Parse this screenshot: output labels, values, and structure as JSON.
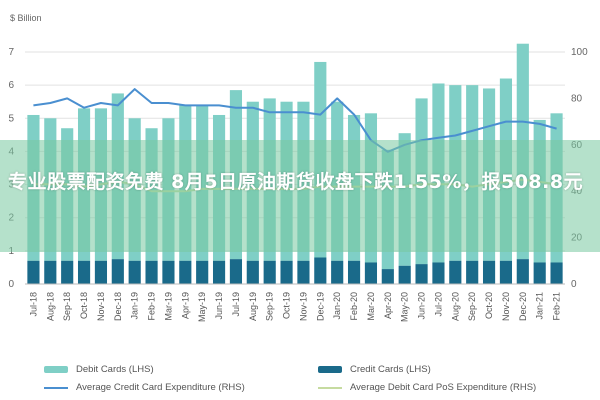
{
  "chart_data": {
    "type": "bar",
    "ylabel_left": "$ Billion",
    "ylim_left": [
      0,
      7
    ],
    "yticks_left": [
      "0",
      "1",
      "2",
      "3",
      "4",
      "5",
      "6",
      "7"
    ],
    "ylim_right": [
      0,
      100
    ],
    "yticks_right": [
      "0",
      "20",
      "40",
      "60",
      "80",
      "100"
    ],
    "grid": true,
    "legend_position": "bottom",
    "categories": [
      "Jul-18",
      "Aug-18",
      "Sep-18",
      "Oct-18",
      "Nov-18",
      "Dec-18",
      "Jan-19",
      "Feb-19",
      "Mar-19",
      "Apr-19",
      "May-19",
      "Jun-19",
      "Jul-19",
      "Aug-19",
      "Sep-19",
      "Oct-19",
      "Nov-19",
      "Dec-19",
      "Jan-20",
      "Feb-20",
      "Mar-20",
      "Apr-20",
      "May-20",
      "Jun-20",
      "Jul-20",
      "Aug-20",
      "Sep-20",
      "Oct-20",
      "Nov-20",
      "Dec-20",
      "Jan-21",
      "Feb-21"
    ],
    "series": [
      {
        "name": "Debit Cards (LHS)",
        "type": "bar",
        "axis": "left",
        "color": "#7fcfc6",
        "values": [
          4.4,
          4.3,
          4.0,
          4.6,
          4.6,
          5.0,
          4.3,
          4.0,
          4.3,
          4.7,
          4.7,
          4.4,
          5.1,
          4.8,
          4.9,
          4.8,
          4.8,
          5.9,
          4.8,
          4.4,
          4.5,
          3.6,
          4.0,
          5.0,
          5.4,
          5.3,
          5.3,
          5.2,
          5.5,
          6.5,
          4.3,
          4.5
        ]
      },
      {
        "name": "Credit Cards (LHS)",
        "type": "bar",
        "axis": "left",
        "color": "#1a6a8a",
        "values": [
          0.7,
          0.7,
          0.7,
          0.7,
          0.7,
          0.75,
          0.7,
          0.7,
          0.7,
          0.7,
          0.7,
          0.7,
          0.75,
          0.7,
          0.7,
          0.7,
          0.7,
          0.8,
          0.7,
          0.7,
          0.65,
          0.45,
          0.55,
          0.6,
          0.65,
          0.7,
          0.7,
          0.7,
          0.7,
          0.75,
          0.65,
          0.65
        ]
      },
      {
        "name": "Average Credit Card Expenditure (RHS)",
        "type": "line",
        "axis": "right",
        "color": "#4a8fd0",
        "values": [
          77,
          78,
          80,
          76,
          78,
          77,
          84,
          78,
          78,
          77,
          77,
          77,
          76,
          76,
          74,
          74,
          74,
          73,
          80,
          73,
          62,
          57,
          60,
          62,
          63,
          64,
          66,
          68,
          70,
          70,
          69,
          67
        ]
      },
      {
        "name": "Average Debit Card PoS Expenditure (RHS)",
        "type": "line",
        "axis": "right",
        "color": "#c6dba0",
        "values": [
          43,
          43,
          43,
          42,
          43,
          44,
          43,
          40,
          40,
          40,
          41,
          41,
          41,
          41,
          41,
          41,
          41,
          42,
          42,
          42,
          42,
          42,
          42,
          43,
          43,
          43,
          42,
          43,
          44,
          45,
          44,
          43
        ]
      }
    ]
  },
  "overlay": {
    "headline": "专业股票配资免费 8月5日原油期货收盘下跌1.55%，报508.8元"
  }
}
